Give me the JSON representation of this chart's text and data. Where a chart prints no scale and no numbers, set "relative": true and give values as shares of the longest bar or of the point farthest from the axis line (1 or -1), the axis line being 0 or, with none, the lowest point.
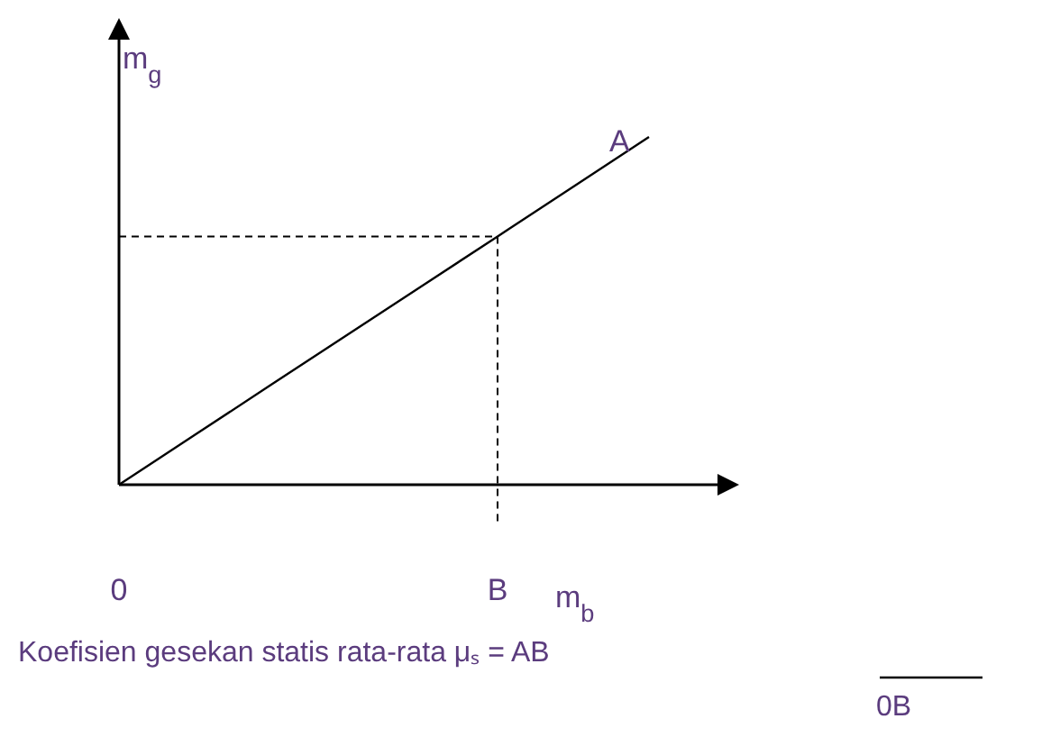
{
  "chart_data": {
    "type": "line",
    "relative": true,
    "categories": [
      "0",
      null,
      null,
      null,
      null,
      "B",
      null,
      null
    ],
    "series": [
      {
        "color": "#000000",
        "values": [
          0,
          0.143,
          0.286,
          0.429,
          0.571,
          0.714,
          0.857,
          1
        ]
      }
    ],
    "ref_lines": [
      {
        "axis": "y",
        "value": 0.714,
        "color": "#000000",
        "line_style": "dashed"
      }
    ],
    "ylabel": "m$_{g}$",
    "xlabel": "m$_{b}$",
    "annotations": [
      "A",
      "Koefisien gesekan statis rata-rata  μₛ  =  AB",
      "0B"
    ]
  }
}
